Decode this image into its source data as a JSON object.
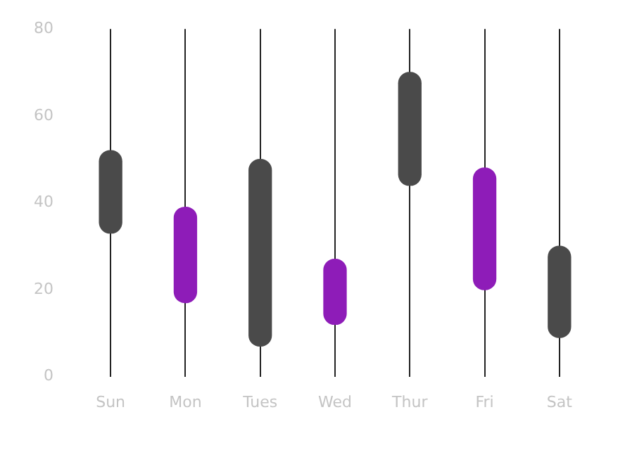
{
  "chart_data": {
    "type": "bar",
    "categories": [
      "Sun",
      "Mon",
      "Tues",
      "Wed",
      "Thur",
      "Fri",
      "Sat"
    ],
    "base": [
      33,
      17,
      7,
      12,
      44,
      20,
      9
    ],
    "values": [
      19,
      22,
      43,
      15,
      26,
      28,
      21
    ],
    "colors": [
      "#4a4a4a",
      "#8e1cb8",
      "#4a4a4a",
      "#8e1cb8",
      "#4a4a4a",
      "#8e1cb8",
      "#4a4a4a"
    ],
    "ylim": [
      0,
      80
    ],
    "yticks": [
      0,
      20,
      40,
      60,
      80
    ],
    "grid": "x",
    "legend": false
  }
}
